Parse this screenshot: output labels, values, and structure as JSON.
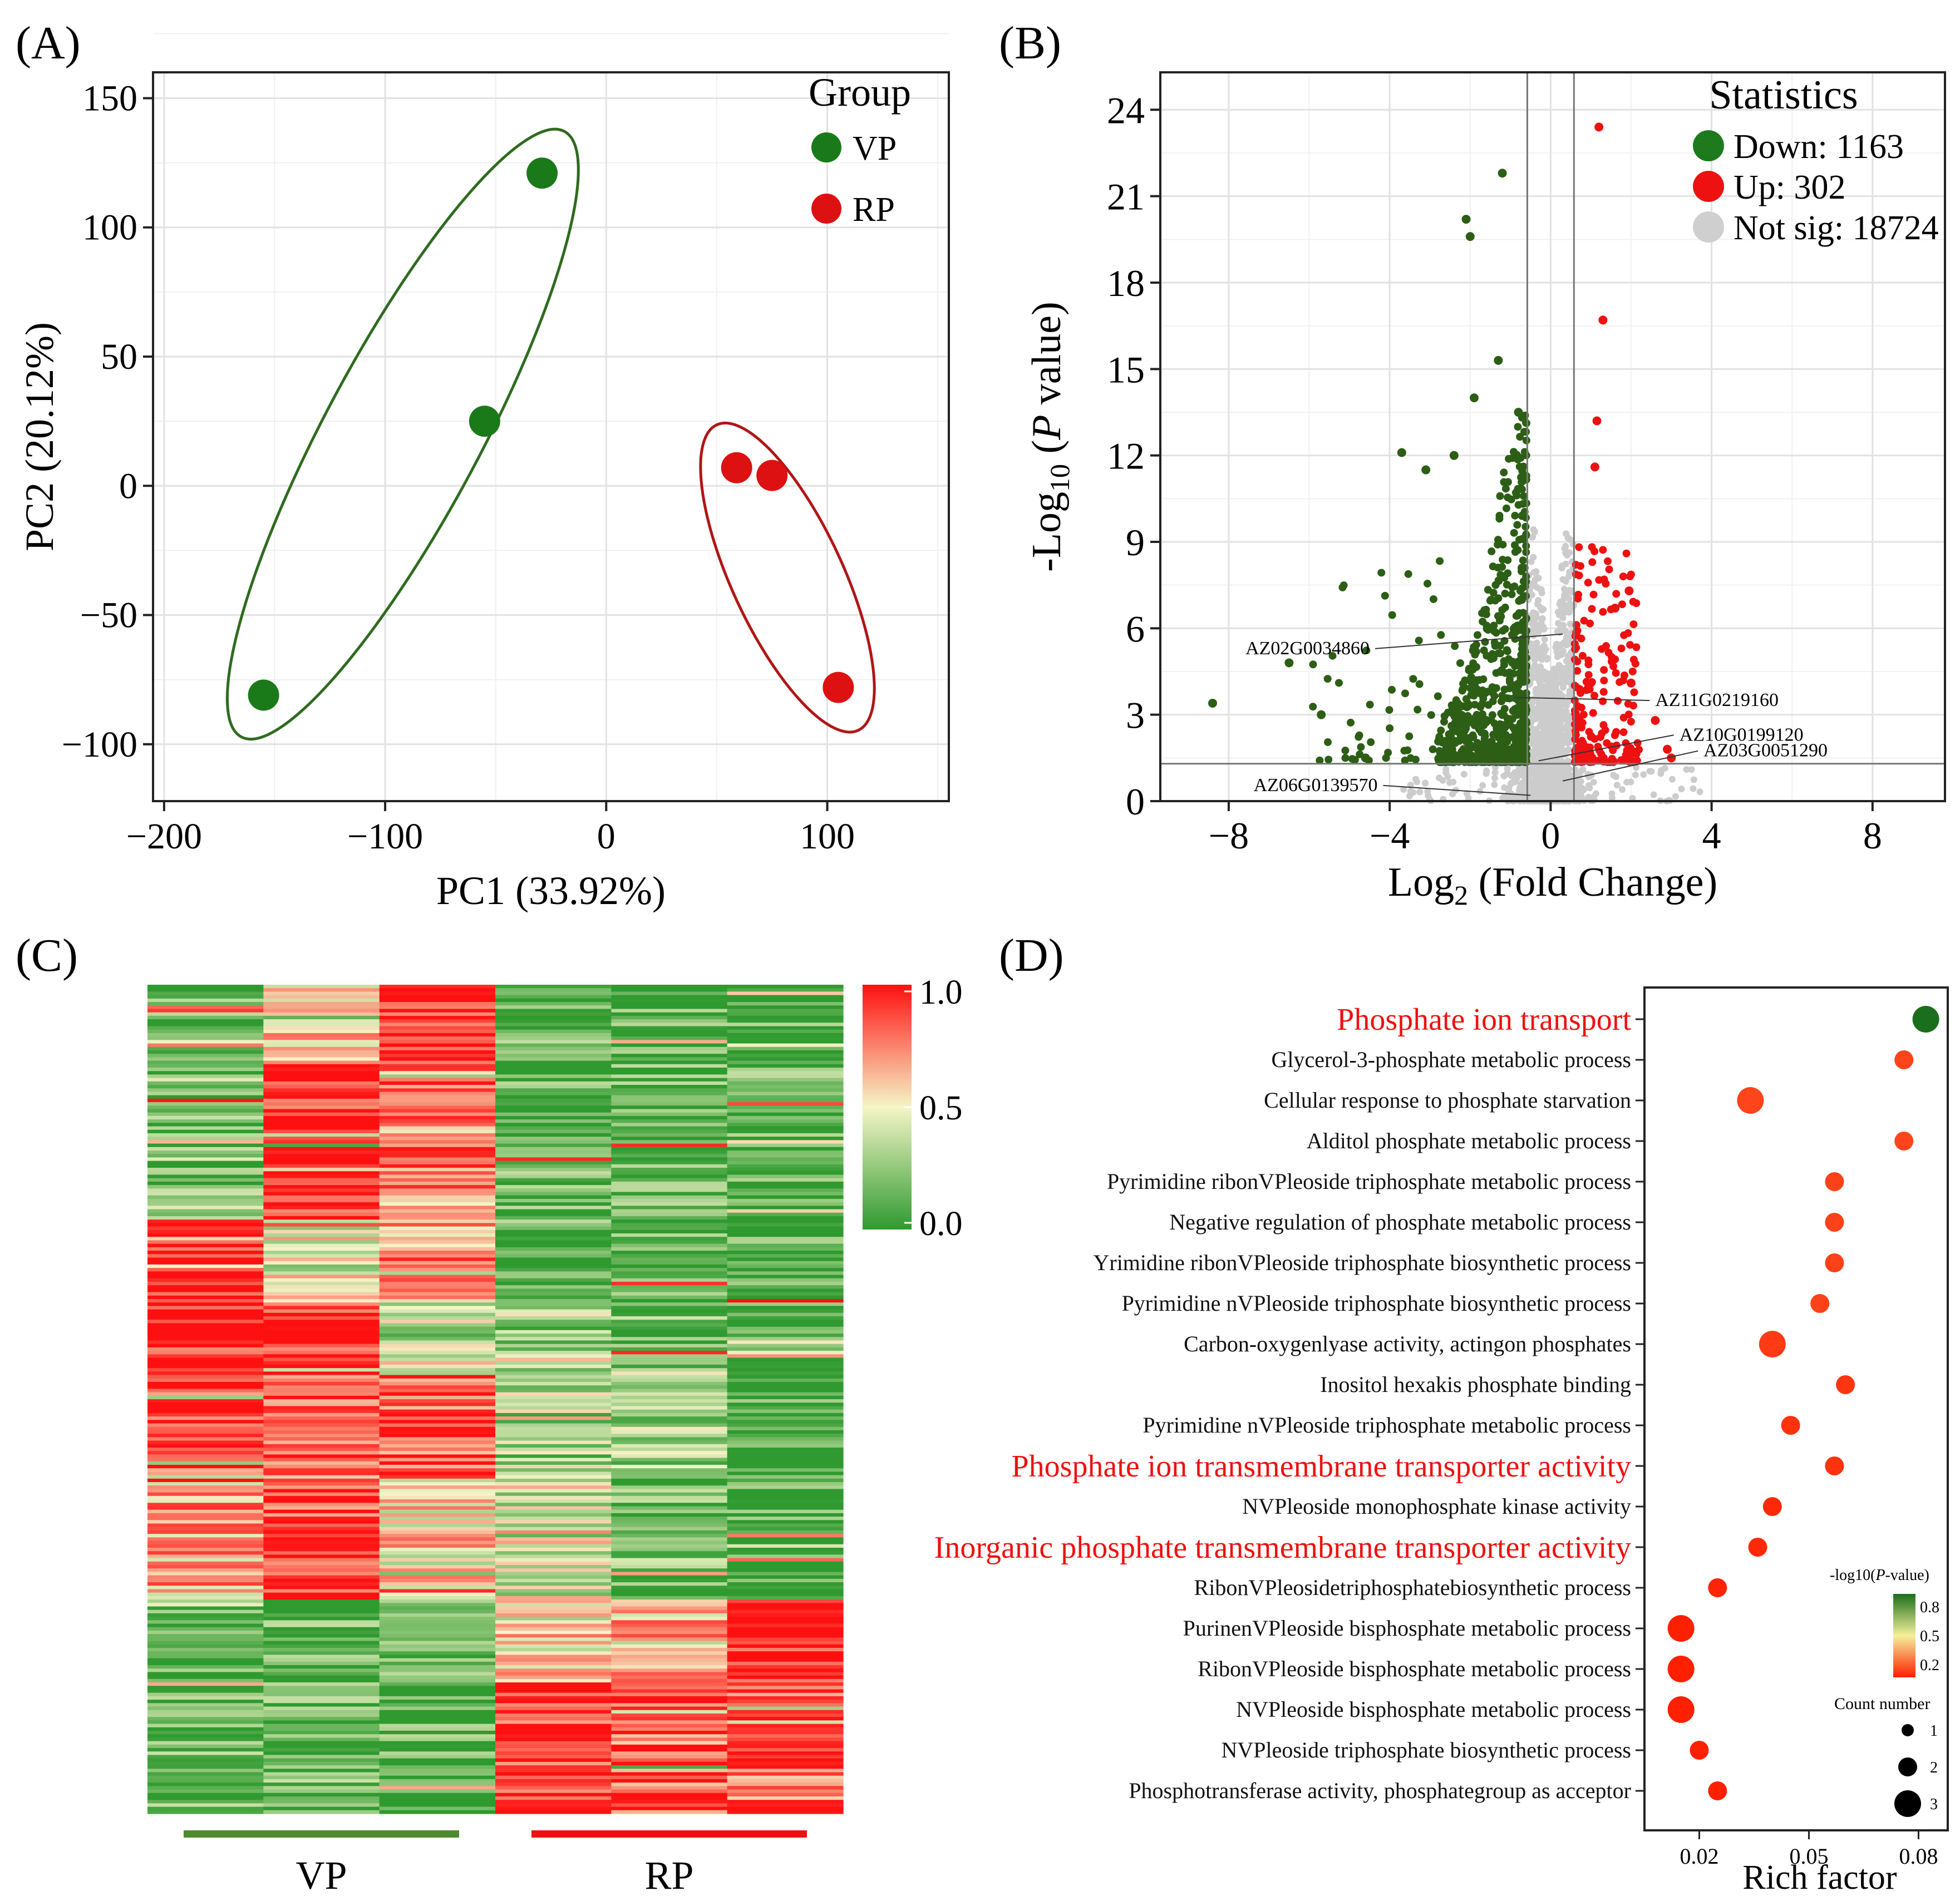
{
  "panels": {
    "A": {
      "tag": "(A)",
      "chart_data": {
        "type": "scatter",
        "xlabel": "PC1 (33.92%)",
        "ylabel": "PC2 (20.12%)",
        "xlim": [
          -205,
          155
        ],
        "ylim": [
          -122,
          160
        ],
        "xticks": [
          -200,
          -100,
          0,
          100
        ],
        "yticks": [
          -100,
          -50,
          0,
          50,
          100,
          150
        ],
        "xtick_labels": [
          "−200",
          "−100",
          "0",
          "100"
        ],
        "ytick_labels": [
          "−100",
          "−50",
          "0",
          "50",
          "100",
          "150"
        ],
        "grid": true,
        "legend": {
          "title": "Group",
          "position": "top-right"
        },
        "series": [
          {
            "name": "VP",
            "color": "#1a7a1a",
            "ellipse_color": "#2f6b1f",
            "x": [
              -29,
              -55,
              -155
            ],
            "y": [
              121,
              25,
              -81
            ]
          },
          {
            "name": "RP",
            "color": "#dd1111",
            "ellipse_color": "#b01515",
            "x": [
              59,
              75,
              105
            ],
            "y": [
              7,
              4,
              -78
            ]
          }
        ]
      }
    },
    "B": {
      "tag": "(B)",
      "chart_data": {
        "type": "scatter",
        "xlabel_main": "Log",
        "xlabel_sub": "2",
        "xlabel_rest": " (Fold Change)",
        "ylabel_pre": "-Log",
        "ylabel_sub": "10",
        "ylabel_mid": " (",
        "ylabel_italic": "P",
        "ylabel_post": " value)",
        "xlim": [
          -9.7,
          9.8
        ],
        "ylim": [
          0,
          25.3
        ],
        "xticks": [
          -8,
          -4,
          0,
          4,
          8
        ],
        "yticks": [
          0,
          3,
          6,
          9,
          12,
          15,
          18,
          21,
          24
        ],
        "xtick_labels": [
          "−8",
          "−4",
          "0",
          "4",
          "8"
        ],
        "ytick_labels": [
          "0",
          "3",
          "6",
          "9",
          "12",
          "15",
          "18",
          "21",
          "24"
        ],
        "grid": true,
        "thresholds": {
          "log2fc": [
            -0.58,
            0.58
          ],
          "neglog10p": 1.3
        },
        "legend": {
          "title": "Statistics",
          "position": "top-right",
          "entries": [
            {
              "label": "Down: 1163",
              "color": "#1d7a1d"
            },
            {
              "label": "Up: 302",
              "color": "#ee1111"
            },
            {
              "label": "Not sig: 18724",
              "color": "#cfcfcf"
            }
          ]
        },
        "colors": {
          "down": "#2d5e16",
          "up": "#ee1111",
          "ns": "#cccccc"
        },
        "highlight_points": {
          "down": [
            [
              -8.4,
              3.4
            ],
            [
              -6.5,
              4.8
            ],
            [
              -2.1,
              20.2
            ],
            [
              -2.0,
              19.6
            ],
            [
              -1.2,
              21.8
            ],
            [
              -3.7,
              12.1
            ],
            [
              -4.6,
              1.5
            ],
            [
              -5.7,
              3.0
            ],
            [
              -1.3,
              15.3
            ],
            [
              -0.8,
              13.5
            ],
            [
              -2.4,
              12.0
            ],
            [
              -1.9,
              14.0
            ],
            [
              -3.1,
              11.5
            ]
          ],
          "up": [
            [
              1.2,
              23.4
            ],
            [
              1.3,
              16.7
            ],
            [
              1.15,
              13.2
            ],
            [
              1.1,
              11.6
            ],
            [
              1.95,
              7.3
            ],
            [
              2.0,
              4.1
            ],
            [
              2.6,
              2.8
            ],
            [
              2.9,
              1.8
            ],
            [
              3.0,
              1.5
            ],
            [
              1.6,
              6.7
            ]
          ]
        },
        "annotations": [
          {
            "label": "AZ02G0034860",
            "x": -4.5,
            "y": 5.1,
            "px": 0.3,
            "py": 5.8
          },
          {
            "label": "AZ11G0219160",
            "x": 2.6,
            "y": 3.3,
            "px": -0.9,
            "py": 3.6
          },
          {
            "label": "AZ10G0199120",
            "x": 3.2,
            "y": 2.1,
            "px": -0.3,
            "py": 1.4
          },
          {
            "label": "AZ03G0051290",
            "x": 3.8,
            "y": 1.55,
            "px": 0.3,
            "py": 0.7
          },
          {
            "label": "AZ06G0139570",
            "x": -4.3,
            "y": 0.35,
            "px": -0.5,
            "py": 0.2
          }
        ]
      }
    },
    "C": {
      "tag": "(C)",
      "chart_data": {
        "type": "heatmap",
        "columns": 6,
        "rows": 240,
        "groups": [
          {
            "label": "VP",
            "color": "#4e8a2e",
            "columns": [
              0,
              1,
              2
            ]
          },
          {
            "label": "RP",
            "color": "#ee1111",
            "columns": [
              3,
              4,
              5
            ]
          }
        ],
        "colorbar": {
          "min": 0.0,
          "mid": 0.5,
          "max": 1.0,
          "ticks": [
            "1.0",
            "0.5",
            "0.0"
          ],
          "colors": [
            "#2f9a2f",
            "#f5f5c8",
            "#ff1010"
          ]
        }
      }
    },
    "D": {
      "tag": "(D)",
      "chart_data": {
        "type": "scatter",
        "xlabel": "Rich factor",
        "xlim": [
          0.005,
          0.088
        ],
        "xticks": [
          0.02,
          0.05,
          0.08
        ],
        "xtick_labels": [
          "0.02",
          "0.05",
          "0.08"
        ],
        "categories": [
          "Phosphate ion transport",
          "Glycerol-3-phosphate metabolic process",
          "Cellular response to phosphate starvation",
          "Alditol phosphate metabolic process",
          "Pyrimidine ribonVPleoside triphosphate metabolic process",
          "Negative regulation of phosphate metabolic process",
          "Yrimidine ribonVPleoside triphosphate biosynthetic process",
          "Pyrimidine nVPleoside triphosphate biosynthetic process",
          "Carbon-oxygenlyase activity, actingon phosphates",
          "Inositol hexakis phosphate binding",
          "Pyrimidine nVPleoside triphosphate metabolic process",
          "Phosphate ion transmembrane transporter activity",
          "NVPleoside monophosphate kinase activity",
          "Inorganic phosphate transmembrane transporter activity",
          "RibonVPleosidetriphosphatebiosynthetic process",
          "PurinenVPleoside bisphosphate metabolic process",
          "RibonVPleoside bisphosphate metabolic process",
          "NVPleoside bisphosphate metabolic process",
          "NVPleoside triphosphate biosynthetic process",
          "Phosphotransferase activity, phosphategroup as acceptor"
        ],
        "highlighted": [
          0,
          11,
          13
        ],
        "rich_factor": [
          0.082,
          0.076,
          0.034,
          0.076,
          0.057,
          0.057,
          0.057,
          0.053,
          0.04,
          0.06,
          0.045,
          0.057,
          0.04,
          0.036,
          0.025,
          0.015,
          0.015,
          0.015,
          0.02,
          0.025
        ],
        "count": [
          3,
          2,
          3,
          2,
          2,
          2,
          2,
          2,
          3,
          2,
          2,
          2,
          2,
          2,
          2,
          3,
          3,
          3,
          2,
          2
        ],
        "neglog10p": [
          0.9,
          0.3,
          0.3,
          0.3,
          0.28,
          0.28,
          0.28,
          0.28,
          0.25,
          0.22,
          0.2,
          0.2,
          0.15,
          0.15,
          0.12,
          0.1,
          0.1,
          0.1,
          0.1,
          0.1
        ],
        "color_legend": {
          "title_pre": "-log10(",
          "title_italic": "P",
          "title_post": "-value)",
          "ticks": [
            "0.8",
            "0.5",
            "0.2"
          ],
          "colors": [
            "#1b6e1b",
            "#f5f09a",
            "#ff2000"
          ]
        },
        "size_legend": {
          "title": "Count number",
          "values": [
            "1",
            "2",
            "3"
          ]
        }
      }
    }
  }
}
